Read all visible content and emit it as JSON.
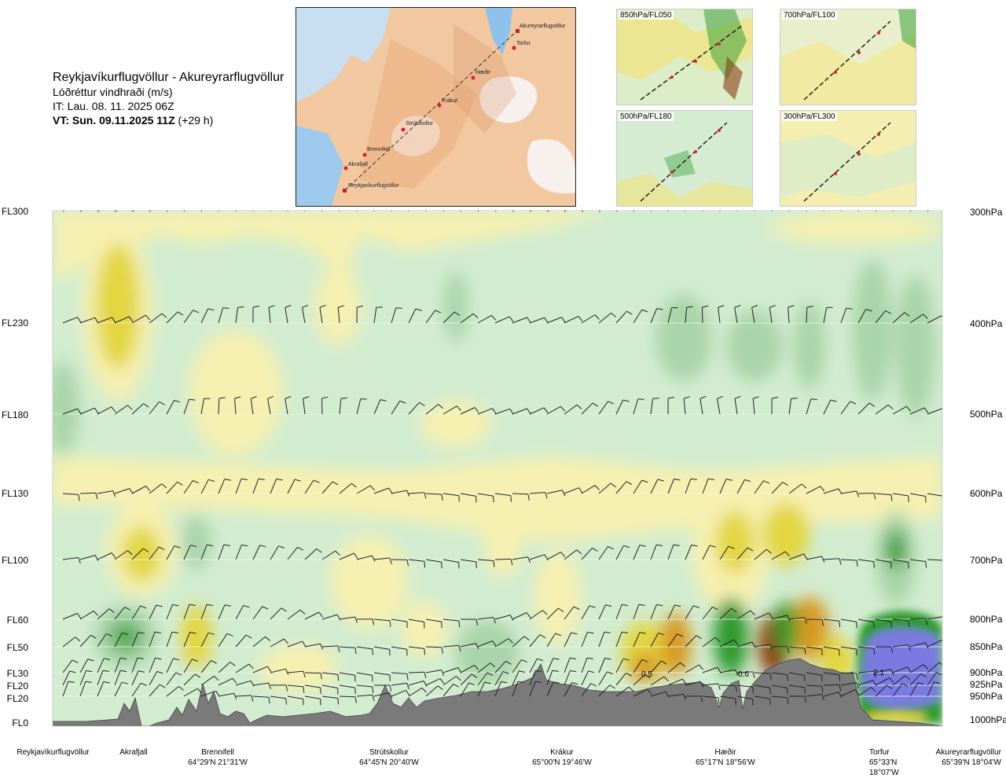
{
  "header": {
    "route": "Reykjavíkurflugvöllur - Akureyrarflugvöllur",
    "parameter": "Lóðréttur vindhraði (m/s)",
    "issue_time": "IT: Lau. 08. 11. 2025 06Z",
    "valid_time_bold": "VT: Sun. 09.11.2025 11Z",
    "valid_offset": "(+29 h)"
  },
  "route_map": {
    "points": [
      "Akureyrarflugvöllur",
      "Torfur",
      "Hæðir",
      "Krákur",
      "Strútskollur",
      "Brennifell",
      "Akrafjall",
      "Reykjavíkurflugvöllur"
    ]
  },
  "insets": [
    {
      "label": "850hPa/FL050"
    },
    {
      "label": "700hPa/FL100"
    },
    {
      "label": "500hPa/FL180"
    },
    {
      "label": "300hPa/FL300"
    }
  ],
  "left_axis": [
    "FL300",
    "FL230",
    "FL180",
    "FL130",
    "FL100",
    "FL60",
    "FL50",
    "FL30",
    "FL20",
    "FL20",
    "FL0"
  ],
  "right_axis": [
    "300hPa",
    "400hPa",
    "500hPa",
    "600hPa",
    "700hPa",
    "800hPa",
    "850hPa",
    "900hPa",
    "925hPa",
    "950hPa",
    "1000hPa"
  ],
  "chart_data": {
    "type": "heatmap",
    "title": "Lóðréttur vindhraði (m/s)",
    "y_levels_hpa": [
      300,
      400,
      500,
      600,
      700,
      800,
      850,
      900,
      925,
      950,
      1000
    ],
    "x_locations": [
      "Reykjavíkurflugvöllur",
      "Akrafjall",
      "Brennifell",
      "Strútskollur",
      "Krákur",
      "Hæðir",
      "Torfur",
      "Akureyrarflugvöllur"
    ],
    "value_labels": [
      {
        "text": "0.5",
        "location": "Krákur-Hæðir",
        "level_hpa": 900
      },
      {
        "text": "0.6",
        "location": "Hæðir",
        "level_hpa": 900
      },
      {
        "text": "2.1",
        "location": "Torfur",
        "level_hpa": 900
      }
    ],
    "colors": {
      "sinking_strong": "#7a7ae0",
      "sinking": "#2e9a2e",
      "sinking_weak": "#a9d4a9",
      "neutral": "#d2ecd0",
      "rising_weak": "#f6f0b0",
      "rising": "#e3d640",
      "rising_strong": "#d69a20",
      "rising_max": "#8a3e10",
      "terrain": "#7a7a7a"
    }
  },
  "bottom_locations": [
    {
      "name": "Reykjavíkurflugvöllur",
      "coord": ""
    },
    {
      "name": "Akrafjall",
      "coord": ""
    },
    {
      "name": "Brennifell",
      "coord": "64°29'N 21°31'W"
    },
    {
      "name": "Strútskollur",
      "coord": "64°45'N 20°40'W"
    },
    {
      "name": "Krákur",
      "coord": "65°00'N 19°46'W"
    },
    {
      "name": "Hæðir",
      "coord": "65°17'N 18°56'W"
    },
    {
      "name": "Torfur",
      "coord": "65°33'N 18°07'W"
    },
    {
      "name": "Akureyrarflugvöllur",
      "coord": "65°39'N 18°04'W"
    }
  ]
}
